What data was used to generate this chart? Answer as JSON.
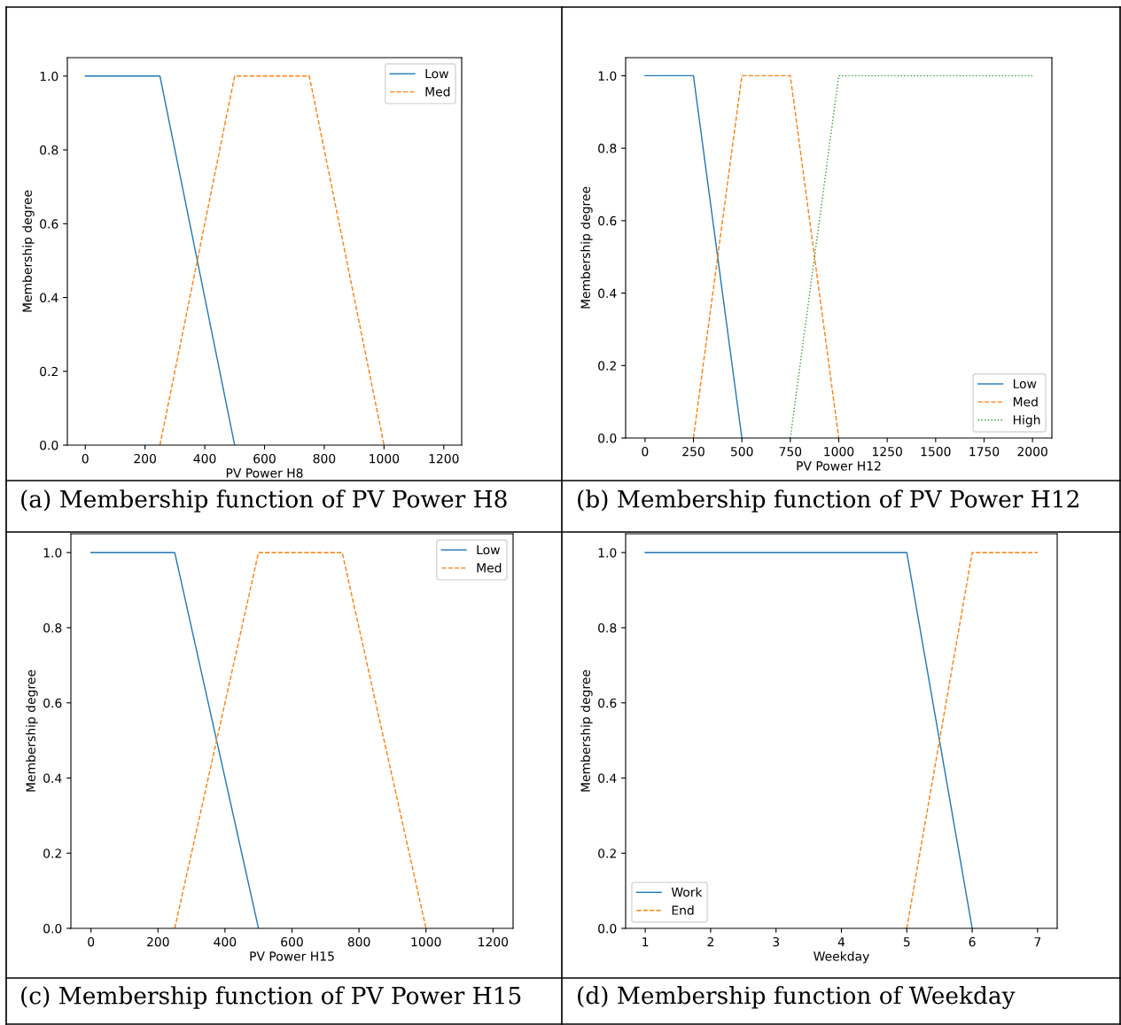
{
  "chart_data": [
    {
      "type": "line",
      "xlabel": "PV Power H8",
      "ylabel": "Membership degree",
      "xlim": [
        -60,
        1260
      ],
      "xticks": [
        0,
        200,
        400,
        600,
        800,
        1000,
        1200
      ],
      "ylim": [
        0,
        1.05
      ],
      "yticks": [
        {
          "value": 0,
          "label": "0.0"
        },
        {
          "value": 0.2,
          "label": "0.2"
        },
        {
          "value": 0.4,
          "label": "0.4"
        },
        {
          "value": 0.6,
          "label": "0.6"
        },
        {
          "value": 0.8,
          "label": "0.8"
        },
        {
          "value": 1,
          "label": "1.0"
        }
      ],
      "legend": "top right",
      "grid": false,
      "annotations": [
        "(a) Membership function of PV Power H8"
      ],
      "series": [
        {
          "name": "Low",
          "color": "#1f77b4",
          "line_style": "solid",
          "x": [
            0,
            250,
            500
          ],
          "values": [
            1,
            1,
            0
          ]
        },
        {
          "name": "Med",
          "color": "#ff7f0e",
          "line_style": "dashed",
          "x": [
            250,
            500,
            750,
            1000
          ],
          "values": [
            0,
            1,
            1,
            0
          ]
        }
      ]
    },
    {
      "type": "line",
      "xlabel": "PV Power H12",
      "ylabel": "Membership degree",
      "xlim": [
        -100,
        2100
      ],
      "xticks": [
        0,
        250,
        500,
        750,
        1000,
        1250,
        1500,
        1750,
        2000
      ],
      "ylim": [
        0,
        1.05
      ],
      "yticks": [
        {
          "value": 0,
          "label": "0.0"
        },
        {
          "value": 0.2,
          "label": "0.2"
        },
        {
          "value": 0.4,
          "label": "0.4"
        },
        {
          "value": 0.6,
          "label": "0.6"
        },
        {
          "value": 0.8,
          "label": "0.8"
        },
        {
          "value": 1,
          "label": "1.0"
        }
      ],
      "legend": "bottom right",
      "grid": false,
      "annotations": [
        "(b) Membership function of PV Power H12"
      ],
      "series": [
        {
          "name": "Low",
          "color": "#1f77b4",
          "line_style": "solid",
          "x": [
            0,
            250,
            500
          ],
          "values": [
            1,
            1,
            0
          ]
        },
        {
          "name": "Med",
          "color": "#ff7f0e",
          "line_style": "dashed",
          "x": [
            250,
            500,
            750,
            1000
          ],
          "values": [
            0,
            1,
            1,
            0
          ]
        },
        {
          "name": "High",
          "color": "#2ca02c",
          "line_style": "dotted",
          "x": [
            750,
            1000,
            2000
          ],
          "values": [
            0,
            1,
            1
          ]
        }
      ]
    },
    {
      "type": "line",
      "xlabel": "PV Power H15",
      "ylabel": "Membership degree",
      "xlim": [
        -60,
        1260
      ],
      "xticks": [
        0,
        200,
        400,
        600,
        800,
        1000,
        1200
      ],
      "ylim": [
        0,
        1.05
      ],
      "yticks": [
        {
          "value": 0,
          "label": "0.0"
        },
        {
          "value": 0.2,
          "label": "0.2"
        },
        {
          "value": 0.4,
          "label": "0.4"
        },
        {
          "value": 0.6,
          "label": "0.6"
        },
        {
          "value": 0.8,
          "label": "0.8"
        },
        {
          "value": 1,
          "label": "1.0"
        }
      ],
      "legend": "top right",
      "grid": false,
      "annotations": [
        "(c) Membership function of PV Power H15"
      ],
      "series": [
        {
          "name": "Low",
          "color": "#1f77b4",
          "line_style": "solid",
          "x": [
            0,
            250,
            500
          ],
          "values": [
            1,
            1,
            0
          ]
        },
        {
          "name": "Med",
          "color": "#ff7f0e",
          "line_style": "dashed",
          "x": [
            250,
            500,
            750,
            1000
          ],
          "values": [
            0,
            1,
            1,
            0
          ]
        }
      ]
    },
    {
      "type": "line",
      "xlabel": "Weekday",
      "ylabel": "Membership degree",
      "xlim": [
        0.7,
        7.3
      ],
      "xticks": [
        1,
        2,
        3,
        4,
        5,
        6,
        7
      ],
      "ylim": [
        0,
        1.05
      ],
      "yticks": [
        {
          "value": 0,
          "label": "0.0"
        },
        {
          "value": 0.2,
          "label": "0.2"
        },
        {
          "value": 0.4,
          "label": "0.4"
        },
        {
          "value": 0.6,
          "label": "0.6"
        },
        {
          "value": 0.8,
          "label": "0.8"
        },
        {
          "value": 1,
          "label": "1.0"
        }
      ],
      "legend": "bottom left",
      "grid": false,
      "annotations": [
        "(d) Membership function of Weekday"
      ],
      "series": [
        {
          "name": "Work",
          "color": "#1f77b4",
          "line_style": "solid",
          "x": [
            1,
            5,
            6
          ],
          "values": [
            1,
            1,
            0
          ]
        },
        {
          "name": "End",
          "color": "#ff7f0e",
          "line_style": "dashed",
          "x": [
            5,
            6,
            7
          ],
          "values": [
            0,
            1,
            1
          ]
        }
      ]
    }
  ]
}
